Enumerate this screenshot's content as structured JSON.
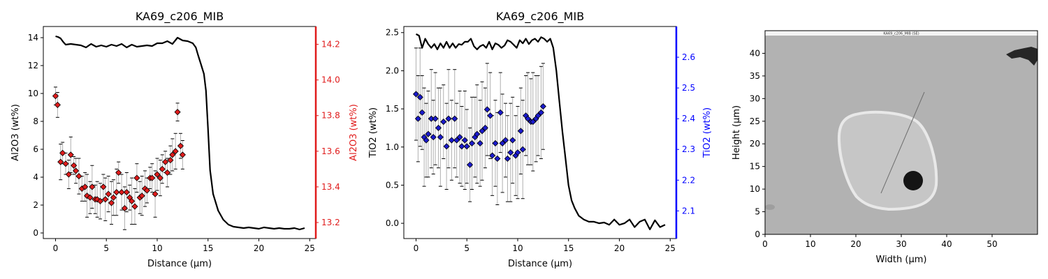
{
  "colors": {
    "al_points": "#e01b1b",
    "al_axis": "#e01b1b",
    "ti_points": "#1a1acd",
    "ti_axis": "#0000ff",
    "profile_line": "#000000",
    "errorbar": "#b0b0b0"
  },
  "chart_data": [
    {
      "type": "line",
      "title": "KA69_c206_MIB",
      "xlabel": "Distance (µm)",
      "ylabel": "Al2O3 (wt%)",
      "ylabel_right": "Al2O3 (wt%)",
      "xlim": [
        -1.2,
        25.6
      ],
      "ylim": [
        -0.4,
        14.8
      ],
      "ylim_right": [
        13.11,
        14.3
      ],
      "xticks": [
        0,
        5,
        10,
        15,
        20,
        25
      ],
      "yticks": [
        0,
        2,
        4,
        6,
        8,
        10,
        12,
        14
      ],
      "yticks_right": [
        13.2,
        13.4,
        13.6,
        13.8,
        14.0,
        14.2
      ],
      "grid": false,
      "right_axis_color": "red",
      "series": [
        {
          "kind": "line",
          "axis": "left",
          "color": "black",
          "x": [
            0,
            0.25,
            0.5,
            0.75,
            1.0,
            1.5,
            2.0,
            2.5,
            3.0,
            3.5,
            4.0,
            4.5,
            5.0,
            5.5,
            6.0,
            6.5,
            7.0,
            7.5,
            8.0,
            8.5,
            9.0,
            9.5,
            10.0,
            10.5,
            11.0,
            11.5,
            12.0,
            12.5,
            13.0,
            13.5,
            13.8,
            14.0,
            14.3,
            14.6,
            14.8,
            15.0,
            15.2,
            15.5,
            16.0,
            16.5,
            17.0,
            17.5,
            18.0,
            18.5,
            19.0,
            19.5,
            20.0,
            20.5,
            21.0,
            21.5,
            22.0,
            22.5,
            23.0,
            23.5,
            24.0,
            24.5
          ],
          "y": [
            14.1,
            14.05,
            13.95,
            13.7,
            13.5,
            13.55,
            13.5,
            13.45,
            13.3,
            13.55,
            13.35,
            13.45,
            13.35,
            13.5,
            13.4,
            13.55,
            13.3,
            13.5,
            13.35,
            13.4,
            13.45,
            13.4,
            13.6,
            13.6,
            13.75,
            13.55,
            14.0,
            13.8,
            13.75,
            13.6,
            13.3,
            12.8,
            12.1,
            11.4,
            10.2,
            7.5,
            4.5,
            2.8,
            1.6,
            0.95,
            0.6,
            0.45,
            0.4,
            0.35,
            0.4,
            0.35,
            0.3,
            0.4,
            0.35,
            0.3,
            0.35,
            0.3,
            0.3,
            0.35,
            0.25,
            0.35
          ]
        },
        {
          "kind": "scatter_errorbar",
          "axis": "right",
          "marker": "diamond",
          "color": "red",
          "x": [
            0,
            0.2,
            0.5,
            0.7,
            1.0,
            1.3,
            1.5,
            1.8,
            2.0,
            2.3,
            2.6,
            2.9,
            3.1,
            3.4,
            3.6,
            3.9,
            4.1,
            4.4,
            4.7,
            4.9,
            5.2,
            5.5,
            5.7,
            6.0,
            6.2,
            6.5,
            6.8,
            7.0,
            7.3,
            7.5,
            7.8,
            8.0,
            8.3,
            8.5,
            8.8,
            9.0,
            9.3,
            9.5,
            9.8,
            10.0,
            10.3,
            10.5,
            10.8,
            11.0,
            11.3,
            11.5,
            11.8,
            12.0,
            12.3,
            12.5
          ],
          "y": [
            13.91,
            13.86,
            13.54,
            13.59,
            13.53,
            13.47,
            13.58,
            13.52,
            13.49,
            13.46,
            13.39,
            13.4,
            13.35,
            13.34,
            13.4,
            13.33,
            13.33,
            13.32,
            13.4,
            13.33,
            13.36,
            13.31,
            13.34,
            13.37,
            13.48,
            13.37,
            13.28,
            13.37,
            13.34,
            13.32,
            13.29,
            13.45,
            13.34,
            13.35,
            13.39,
            13.38,
            13.45,
            13.45,
            13.36,
            13.47,
            13.45,
            13.5,
            13.54,
            13.48,
            13.55,
            13.58,
            13.6,
            13.82,
            13.63,
            13.58
          ],
          "err": [
            0.05,
            0.07,
            0.1,
            0.06,
            0.06,
            0.08,
            0.1,
            0.05,
            0.07,
            0.1,
            0.07,
            0.08,
            0.12,
            0.09,
            0.12,
            0.08,
            0.1,
            0.1,
            0.07,
            0.12,
            0.1,
            0.12,
            0.1,
            0.13,
            0.06,
            0.1,
            0.12,
            0.11,
            0.07,
            0.13,
            0.1,
            0.08,
            0.09,
            0.11,
            0.1,
            0.07,
            0.06,
            0.08,
            0.13,
            0.09,
            0.1,
            0.08,
            0.06,
            0.08,
            0.08,
            0.09,
            0.1,
            0.05,
            0.07,
            0.08
          ]
        }
      ]
    },
    {
      "type": "line",
      "title": "KA69_c206_MIB",
      "xlabel": "Distance (µm)",
      "ylabel": "TiO2 (wt%)",
      "ylabel_right": "TiO2 (wt%)",
      "xlim": [
        -1.2,
        25.6
      ],
      "ylim": [
        -0.2,
        2.58
      ],
      "ylim_right": [
        2.01,
        2.7
      ],
      "xticks": [
        0,
        5,
        10,
        15,
        20,
        25
      ],
      "yticks": [
        0.0,
        0.5,
        1.0,
        1.5,
        2.0,
        2.5
      ],
      "yticks_right": [
        2.1,
        2.2,
        2.3,
        2.4,
        2.5,
        2.6
      ],
      "grid": false,
      "right_axis_color": "blue",
      "series": [
        {
          "kind": "line",
          "axis": "left",
          "color": "black",
          "x": [
            0,
            0.3,
            0.6,
            0.9,
            1.2,
            1.5,
            1.8,
            2.1,
            2.4,
            2.7,
            3.0,
            3.3,
            3.6,
            3.9,
            4.2,
            4.5,
            4.8,
            5.1,
            5.4,
            5.7,
            6.0,
            6.3,
            6.6,
            6.9,
            7.2,
            7.5,
            7.8,
            8.1,
            8.4,
            8.7,
            9.0,
            9.3,
            9.6,
            9.9,
            10.2,
            10.5,
            10.8,
            11.1,
            11.4,
            11.7,
            12.0,
            12.3,
            12.6,
            12.9,
            13.2,
            13.5,
            13.8,
            14.1,
            14.4,
            14.7,
            15.0,
            15.3,
            15.6,
            16.0,
            16.5,
            17.0,
            17.5,
            18.0,
            18.5,
            19.0,
            19.5,
            20.0,
            20.5,
            21.0,
            21.5,
            22.0,
            22.5,
            23.0,
            23.5,
            24.0,
            24.5
          ],
          "y": [
            2.48,
            2.46,
            2.3,
            2.42,
            2.35,
            2.3,
            2.35,
            2.28,
            2.36,
            2.3,
            2.38,
            2.3,
            2.36,
            2.3,
            2.35,
            2.34,
            2.38,
            2.38,
            2.42,
            2.32,
            2.28,
            2.32,
            2.34,
            2.3,
            2.38,
            2.28,
            2.36,
            2.34,
            2.3,
            2.33,
            2.4,
            2.38,
            2.34,
            2.3,
            2.4,
            2.36,
            2.42,
            2.35,
            2.4,
            2.42,
            2.38,
            2.44,
            2.42,
            2.38,
            2.42,
            2.3,
            2.0,
            1.6,
            1.2,
            0.85,
            0.5,
            0.3,
            0.2,
            0.1,
            0.05,
            0.02,
            0.02,
            0.0,
            0.01,
            -0.02,
            0.05,
            -0.02,
            0.0,
            0.05,
            -0.05,
            0.02,
            0.05,
            -0.08,
            0.04,
            -0.05,
            -0.02
          ]
        },
        {
          "kind": "scatter_errorbar",
          "axis": "right",
          "marker": "diamond",
          "color": "blue",
          "x": [
            0,
            0.2,
            0.4,
            0.6,
            0.8,
            1.0,
            1.2,
            1.5,
            1.7,
            1.9,
            2.2,
            2.4,
            2.7,
            3.0,
            3.2,
            3.5,
            3.8,
            4.0,
            4.3,
            4.5,
            4.8,
            5.0,
            5.3,
            5.5,
            5.8,
            6.0,
            6.3,
            6.5,
            6.8,
            7.0,
            7.3,
            7.5,
            7.8,
            8.0,
            8.3,
            8.5,
            8.8,
            9.0,
            9.3,
            9.5,
            9.8,
            10.0,
            10.3,
            10.5,
            10.8,
            11.0,
            11.3,
            11.5,
            11.8,
            12.0,
            12.3,
            12.5
          ],
          "y": [
            2.48,
            2.4,
            2.47,
            2.42,
            2.34,
            2.33,
            2.35,
            2.4,
            2.34,
            2.4,
            2.37,
            2.34,
            2.39,
            2.31,
            2.4,
            2.33,
            2.4,
            2.33,
            2.34,
            2.31,
            2.33,
            2.31,
            2.25,
            2.32,
            2.34,
            2.35,
            2.32,
            2.36,
            2.37,
            2.43,
            2.41,
            2.28,
            2.32,
            2.27,
            2.42,
            2.32,
            2.33,
            2.27,
            2.29,
            2.33,
            2.28,
            2.29,
            2.36,
            2.3,
            2.41,
            2.4,
            2.39,
            2.39,
            2.4,
            2.41,
            2.42,
            2.44
          ],
          "err": [
            0.15,
            0.14,
            0.16,
            0.12,
            0.16,
            0.12,
            0.14,
            0.16,
            0.12,
            0.15,
            0.13,
            0.16,
            0.12,
            0.14,
            0.16,
            0.13,
            0.16,
            0.12,
            0.15,
            0.13,
            0.16,
            0.12,
            0.12,
            0.15,
            0.13,
            0.16,
            0.14,
            0.16,
            0.13,
            0.15,
            0.14,
            0.13,
            0.14,
            0.15,
            0.13,
            0.16,
            0.12,
            0.14,
            0.16,
            0.14,
            0.13,
            0.15,
            0.14,
            0.16,
            0.13,
            0.15,
            0.14,
            0.16,
            0.14,
            0.13,
            0.15,
            0.14
          ]
        }
      ]
    },
    {
      "type": "image",
      "title": "",
      "image_caption": "KA69_c206_MIB (SE)",
      "xlabel": "Width (µm)",
      "ylabel": "Height (µm)",
      "xlim": [
        0,
        60
      ],
      "ylim": [
        0,
        45
      ],
      "xticks": [
        0,
        10,
        20,
        30,
        40,
        50
      ],
      "yticks": [
        0,
        5,
        10,
        15,
        20,
        25,
        30,
        35,
        40
      ],
      "grid": false,
      "features": [
        {
          "kind": "inclusion_outline",
          "center": [
            30,
            19.5
          ],
          "size": [
            20,
            13
          ]
        },
        {
          "kind": "dark_spot",
          "center": [
            32.5,
            12
          ],
          "radius": 2.3
        },
        {
          "kind": "profile_line",
          "from": [
            25.5,
            9
          ],
          "to": [
            35,
            31
          ]
        }
      ]
    }
  ]
}
